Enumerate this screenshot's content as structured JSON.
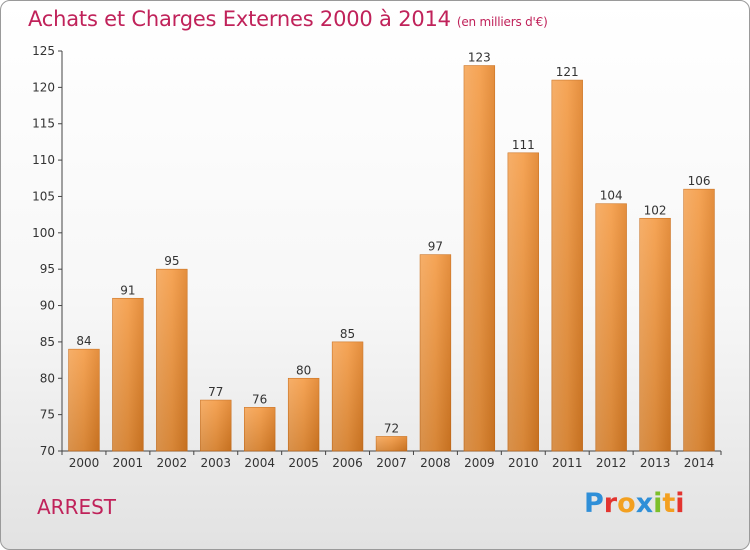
{
  "header": {
    "title": "Achats et Charges Externes 2000 à 2014",
    "subtitle": "(en milliers d'€)"
  },
  "footer": {
    "commune": "ARREST",
    "brand": "Proxiti",
    "brand_letters": [
      "P",
      "r",
      "o",
      "x",
      "i",
      "t",
      "i"
    ],
    "brand_colors": [
      "#2f8fd8",
      "#e3342f",
      "#f3a020",
      "#2f8fd8",
      "#7cbf2a",
      "#f3a020",
      "#e3342f"
    ]
  },
  "chart_data": {
    "type": "bar",
    "title": "Achats et Charges Externes 2000 à 2014",
    "subtitle": "(en milliers d'€)",
    "categories": [
      "2000",
      "2001",
      "2002",
      "2003",
      "2004",
      "2005",
      "2006",
      "2007",
      "2008",
      "2009",
      "2010",
      "2011",
      "2012",
      "2013",
      "2014"
    ],
    "values": [
      84,
      91,
      95,
      77,
      76,
      80,
      85,
      72,
      97,
      123,
      111,
      121,
      104,
      102,
      106
    ],
    "ylim": [
      70,
      125
    ],
    "yticks": [
      70,
      75,
      80,
      85,
      90,
      95,
      100,
      105,
      110,
      115,
      120,
      125
    ],
    "grid": false,
    "bar_color": "#f0943a",
    "bar_color_dark": "#d4731c"
  }
}
